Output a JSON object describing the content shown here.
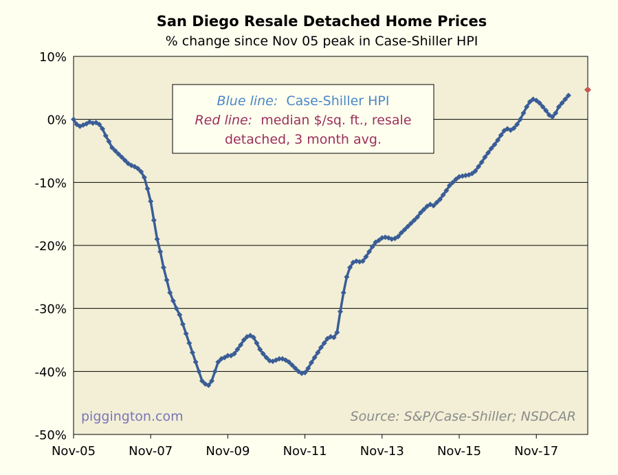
{
  "colors": {
    "background": "#fffff0",
    "plot_background": "#f2efd6",
    "blue_line": "#3a5d96",
    "red_marker": "#c45a52",
    "blue_text": "#4a86c8",
    "red_text": "#9a2f5a",
    "grid": "#000000"
  },
  "legend": {
    "blue_label": "Blue line:",
    "blue_text": "Case-Shiller HPI",
    "red_label": "Red line:",
    "red_text1": "median $/sq. ft., resale",
    "red_text2": "detached, 3 month avg."
  },
  "watermark": "piggington.com",
  "source": "Source: S&P/Case-Shiller; NSDCAR",
  "chart_data": {
    "type": "line",
    "title": "San Diego Resale Detached Home Prices",
    "subtitle": "% change since Nov 05 peak in Case-Shiller HPI",
    "xlabel": "",
    "ylabel": "",
    "xlim": [
      0,
      160
    ],
    "ylim": [
      -50,
      10
    ],
    "yticks": [
      10,
      0,
      -10,
      -20,
      -30,
      -40,
      -50
    ],
    "ytick_labels": [
      "10%",
      "0%",
      "-10%",
      "-20%",
      "-30%",
      "-40%",
      "-50%"
    ],
    "xticks": [
      0,
      24,
      48,
      72,
      96,
      120,
      144
    ],
    "xtick_labels": [
      "Nov-05",
      "Nov-07",
      "Nov-09",
      "Nov-11",
      "Nov-13",
      "Nov-15",
      "Nov-17"
    ],
    "grid": "horizontal",
    "series": [
      {
        "name": "Case-Shiller HPI",
        "values": [
          0,
          -0.8,
          -1.1,
          -0.9,
          -0.7,
          -0.4,
          -0.6,
          -0.5,
          -0.8,
          -1.5,
          -2.6,
          -3.5,
          -4.5,
          -5,
          -5.5,
          -6,
          -6.5,
          -7,
          -7.3,
          -7.5,
          -7.8,
          -8.3,
          -9.2,
          -11,
          -13,
          -16,
          -19,
          -21,
          -23.5,
          -25.5,
          -27.5,
          -28.8,
          -30,
          -31,
          -32.5,
          -34,
          -35.5,
          -37,
          -38.5,
          -40,
          -41.5,
          -42,
          -42.2,
          -41.5,
          -40,
          -38.5,
          -38,
          -37.8,
          -37.5,
          -37.5,
          -37.2,
          -36.5,
          -35.8,
          -35,
          -34.5,
          -34.3,
          -34.6,
          -35.5,
          -36.5,
          -37.2,
          -37.8,
          -38.3,
          -38.4,
          -38.2,
          -38,
          -38,
          -38.2,
          -38.5,
          -39,
          -39.5,
          -40,
          -40.3,
          -40.2,
          -39.5,
          -38.6,
          -37.8,
          -37,
          -36.2,
          -35.5,
          -34.8,
          -34.5,
          -34.6,
          -33.8,
          -30.5,
          -27.5,
          -25,
          -23.5,
          -22.7,
          -22.5,
          -22.6,
          -22.5,
          -21.8,
          -21,
          -20.2,
          -19.5,
          -19.2,
          -18.8,
          -18.7,
          -18.8,
          -19,
          -18.9,
          -18.6,
          -18,
          -17.5,
          -17,
          -16.5,
          -16,
          -15.5,
          -14.8,
          -14.3,
          -13.8,
          -13.5,
          -13.7,
          -13.2,
          -12.7,
          -12,
          -11.3,
          -10.5,
          -10,
          -9.5,
          -9.1,
          -9,
          -8.9,
          -8.8,
          -8.6,
          -8.2,
          -7.5,
          -6.8,
          -6,
          -5.3,
          -4.6,
          -4,
          -3.3,
          -2.5,
          -1.8,
          -1.5,
          -1.7,
          -1.4,
          -0.8,
          0,
          1,
          2,
          2.8,
          3.2,
          3,
          2.6,
          2,
          1.4,
          0.7,
          0.4,
          1,
          2,
          2.6,
          3.2,
          3.8
        ],
        "color": "#3a5d96"
      },
      {
        "name": "median $/sq. ft., resale detached, 3 month avg.",
        "x": [
          160
        ],
        "values": [
          4.7
        ],
        "color": "#c45a52"
      }
    ]
  }
}
